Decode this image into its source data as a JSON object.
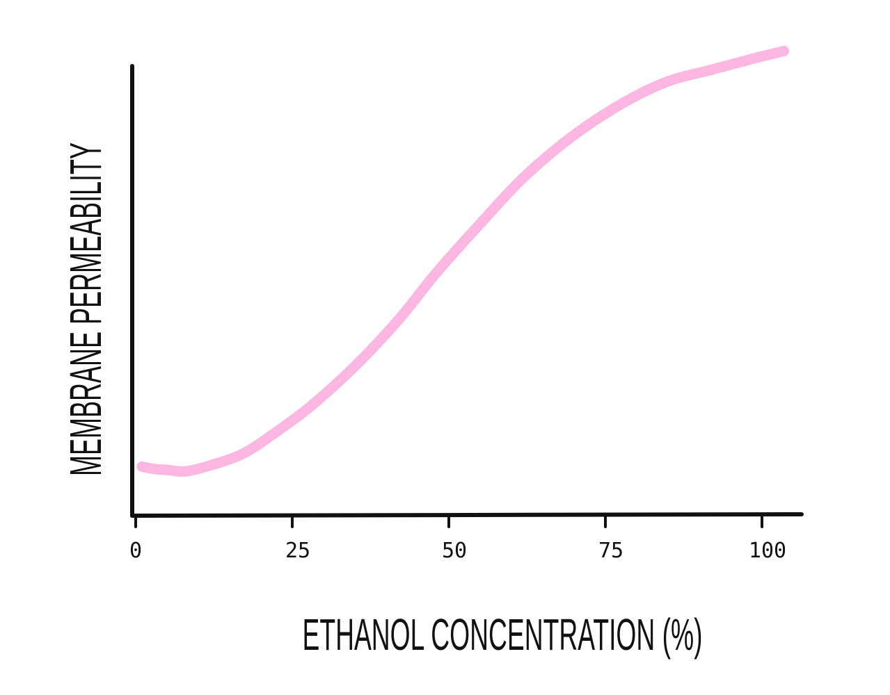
{
  "chart_data": {
    "type": "line",
    "xlabel": "ETHANOL CONCENTRATION (%)",
    "ylabel": "MEMBRANE PERMEABILITY",
    "xlim": [
      0,
      104
    ],
    "ylim": [
      0,
      100
    ],
    "x_ticks": [
      0,
      25,
      50,
      75,
      100
    ],
    "x_tick_labels": [
      "0",
      "25",
      "50",
      "75",
      "100"
    ],
    "grid": false,
    "legend": "none",
    "series": [
      {
        "color": "#fbb6e2",
        "x": [
          1,
          3,
          5,
          8,
          12,
          17,
          22,
          28,
          35,
          42,
          48,
          55,
          62,
          70,
          78,
          85,
          92,
          99,
          103.5
        ],
        "y": [
          10.5,
          10,
          9.8,
          9.5,
          10.8,
          13.2,
          17.5,
          23.5,
          32,
          42,
          52,
          62.5,
          72.5,
          81.5,
          88.5,
          93,
          95.5,
          98,
          99.5
        ]
      }
    ]
  }
}
